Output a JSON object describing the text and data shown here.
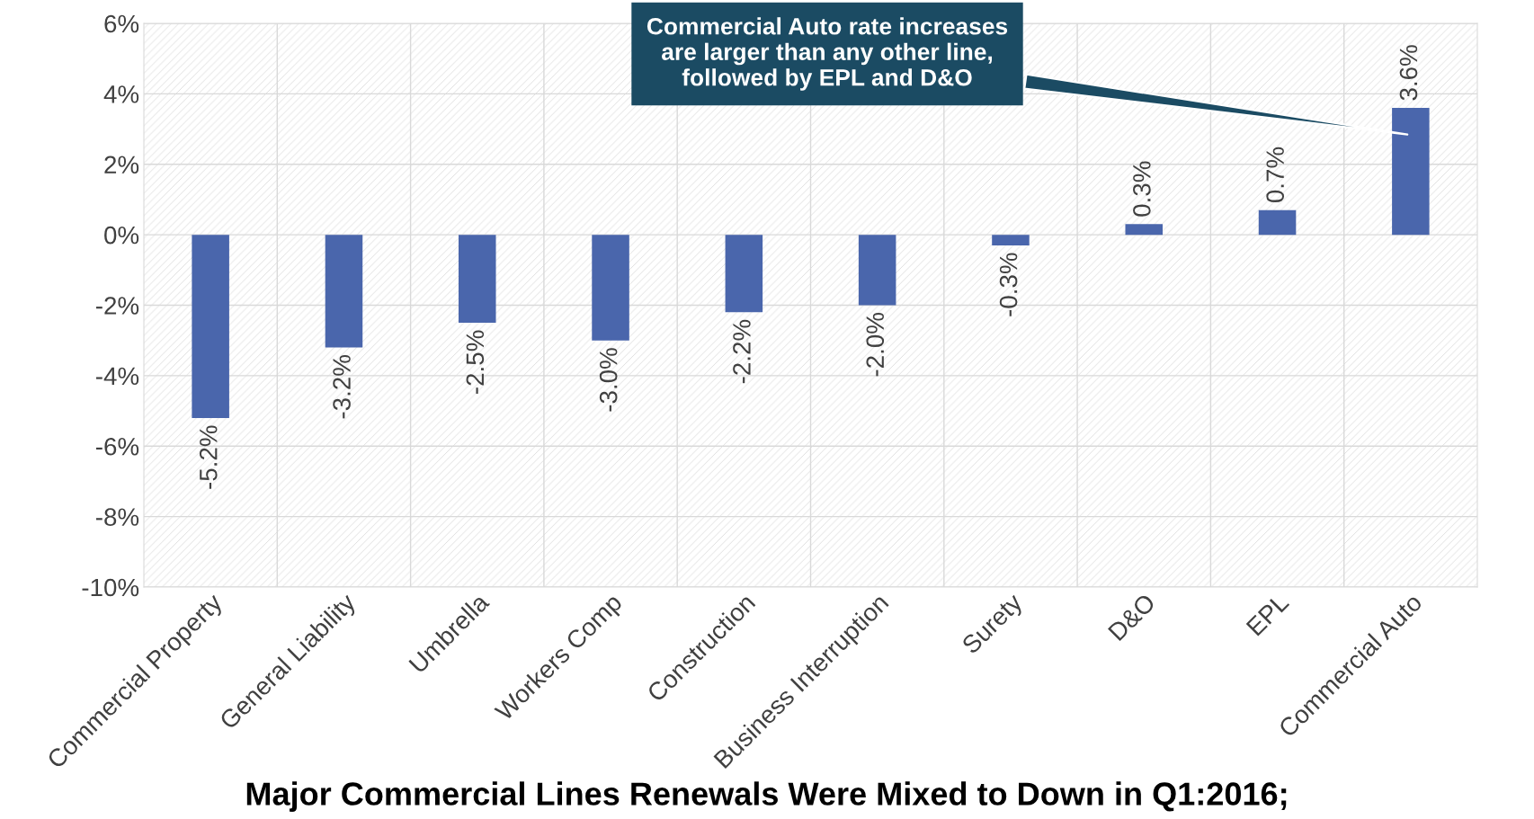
{
  "chart_data": {
    "type": "bar",
    "title": "Major Commercial Lines Renewals Were Mixed to Down in Q1:2016;",
    "categories": [
      "Commercial Property",
      "General Liability",
      "Umbrella",
      "Workers Comp",
      "Construction",
      "Business Interruption",
      "Surety",
      "D&O",
      "EPL",
      "Commercial Auto"
    ],
    "values": [
      -5.2,
      -3.2,
      -2.5,
      -3.0,
      -2.2,
      -2.0,
      -0.3,
      0.3,
      0.7,
      3.6
    ],
    "value_labels": [
      "-5.2%",
      "-3.2%",
      "-2.5%",
      "-3.0%",
      "-2.2%",
      "-2.0%",
      "-0.3%",
      "0.3%",
      "0.7%",
      "3.6%"
    ],
    "color": "#4a66ac",
    "ylim": [
      -10,
      6
    ],
    "yticks": [
      {
        "value": -10,
        "label": "-10%"
      },
      {
        "value": -8,
        "label": "-8%"
      },
      {
        "value": -6,
        "label": "-6%"
      },
      {
        "value": -4,
        "label": "-4%"
      },
      {
        "value": -2,
        "label": "-2%"
      },
      {
        "value": 0,
        "label": "0%"
      },
      {
        "value": 2,
        "label": "2%"
      },
      {
        "value": 4,
        "label": "4%"
      },
      {
        "value": 6,
        "label": "6%"
      }
    ],
    "grid": true,
    "annotations": [
      "Commercial Auto rate increases\nare larger than any other line,\nfollowed by EPL and D&O"
    ]
  }
}
